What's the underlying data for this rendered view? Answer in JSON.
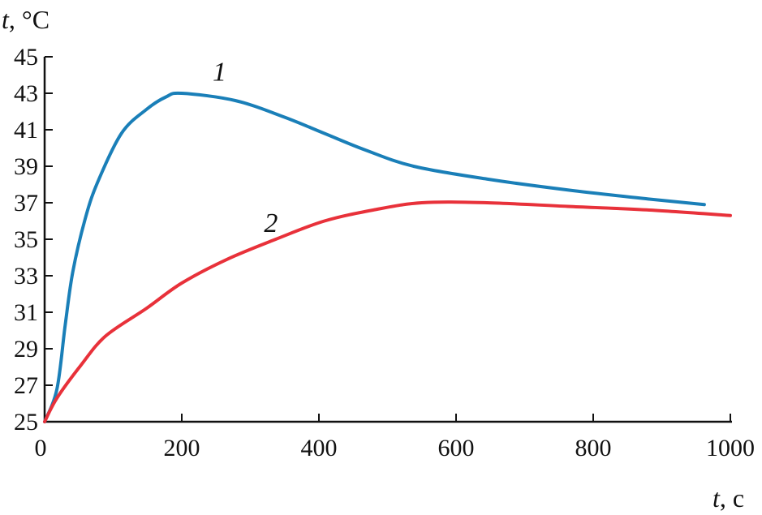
{
  "chart_data": {
    "type": "line",
    "title": "",
    "ylabel": "t, °C",
    "ylabel_var": "t",
    "ylabel_unit": ", °C",
    "xlabel": "t, c",
    "xlabel_var": "t",
    "xlabel_unit": ", c",
    "xlim": [
      0,
      1000
    ],
    "ylim": [
      25,
      45
    ],
    "xticks": [
      0,
      200,
      400,
      600,
      800,
      1000
    ],
    "yticks": [
      25,
      27,
      29,
      31,
      33,
      35,
      37,
      39,
      41,
      43,
      45
    ],
    "grid": false,
    "series": [
      {
        "name": "1",
        "color": "#1a7fb8",
        "x": [
          0,
          18,
          30,
          41,
          59,
          77,
          112,
          148,
          177,
          200,
          278,
          349,
          408,
          467,
          538,
          645,
          763,
          882,
          962
        ],
        "y": [
          25,
          26.8,
          30.3,
          33.2,
          36.1,
          38.1,
          40.8,
          42.1,
          42.8,
          43.0,
          42.6,
          41.7,
          40.8,
          39.9,
          39.0,
          38.3,
          37.7,
          37.2,
          36.9
        ]
      },
      {
        "name": "2",
        "color": "#e8313a",
        "x": [
          0,
          18,
          53,
          89,
          148,
          200,
          266,
          337,
          408,
          479,
          550,
          645,
          763,
          882,
          1000
        ],
        "y": [
          25,
          26.3,
          28.1,
          29.7,
          31.2,
          32.6,
          33.9,
          35.0,
          36.0,
          36.6,
          37.0,
          37.0,
          36.8,
          36.6,
          36.3
        ]
      }
    ],
    "annotations": [
      {
        "text": "1",
        "series": "1",
        "x": 245,
        "y": 43.7
      },
      {
        "text": "2",
        "series": "2",
        "x": 320,
        "y": 35.4
      }
    ]
  }
}
